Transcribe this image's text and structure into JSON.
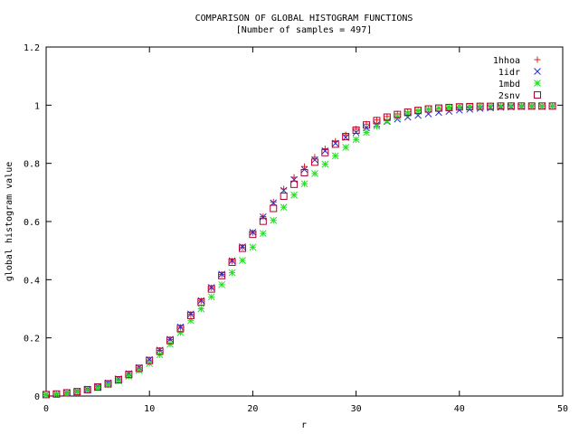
{
  "chart_data": {
    "type": "scatter",
    "title": "COMPARISON OF GLOBAL HISTOGRAM FUNCTIONS",
    "subtitle": "[Number of samples = 497]",
    "xlabel": "r",
    "ylabel": "global histogram value",
    "xlim": [
      0,
      50
    ],
    "ylim": [
      0,
      1.2
    ],
    "x_ticks": [
      "0",
      "10",
      "20",
      "30",
      "40",
      "50"
    ],
    "y_ticks": [
      "0",
      "0.2",
      "0.4",
      "0.6",
      "0.8",
      "1",
      "1.2"
    ],
    "grid": false,
    "legend_position": "top-right",
    "x": [
      0,
      1,
      2,
      3,
      4,
      5,
      6,
      7,
      8,
      9,
      10,
      11,
      12,
      13,
      14,
      15,
      16,
      17,
      18,
      19,
      20,
      21,
      22,
      23,
      24,
      25,
      26,
      27,
      28,
      29,
      30,
      31,
      32,
      33,
      34,
      35,
      36,
      37,
      38,
      39,
      40,
      41,
      42,
      43,
      44,
      45,
      46,
      47,
      48,
      49
    ],
    "series": [
      {
        "name": "1hhoa",
        "marker": "plus",
        "color": "#e0201e",
        "values": [
          0.005,
          0.007,
          0.011,
          0.016,
          0.023,
          0.032,
          0.044,
          0.058,
          0.076,
          0.097,
          0.124,
          0.157,
          0.194,
          0.236,
          0.281,
          0.327,
          0.372,
          0.418,
          0.464,
          0.512,
          0.562,
          0.617,
          0.667,
          0.712,
          0.752,
          0.789,
          0.821,
          0.85,
          0.876,
          0.898,
          0.918,
          0.935,
          0.949,
          0.961,
          0.97,
          0.977,
          0.982,
          0.986,
          0.989,
          0.991,
          0.993,
          0.994,
          0.995,
          0.996,
          0.996,
          0.997,
          0.997,
          0.997,
          0.997,
          0.997
        ]
      },
      {
        "name": "1idr",
        "marker": "cross",
        "color": "#2a2ad8",
        "values": [
          0.005,
          0.007,
          0.011,
          0.016,
          0.023,
          0.033,
          0.045,
          0.059,
          0.077,
          0.098,
          0.125,
          0.158,
          0.195,
          0.237,
          0.282,
          0.328,
          0.373,
          0.419,
          0.465,
          0.513,
          0.563,
          0.616,
          0.664,
          0.707,
          0.744,
          0.779,
          0.812,
          0.843,
          0.869,
          0.889,
          0.906,
          0.922,
          0.934,
          0.944,
          0.952,
          0.959,
          0.965,
          0.97,
          0.975,
          0.979,
          0.983,
          0.986,
          0.989,
          0.991,
          0.993,
          0.994,
          0.995,
          0.996,
          0.996,
          0.997
        ]
      },
      {
        "name": "1mbd",
        "marker": "star",
        "color": "#22e022",
        "values": [
          0.004,
          0.006,
          0.009,
          0.014,
          0.02,
          0.028,
          0.039,
          0.052,
          0.068,
          0.088,
          0.112,
          0.142,
          0.178,
          0.218,
          0.259,
          0.3,
          0.341,
          0.383,
          0.424,
          0.466,
          0.512,
          0.559,
          0.604,
          0.649,
          0.691,
          0.73,
          0.765,
          0.797,
          0.826,
          0.855,
          0.882,
          0.906,
          0.928,
          0.946,
          0.96,
          0.972,
          0.98,
          0.986,
          0.99,
          0.993,
          0.995,
          0.996,
          0.997,
          0.997,
          0.997,
          0.997,
          0.997,
          0.997,
          0.997,
          0.997
        ]
      },
      {
        "name": "2snv",
        "marker": "square",
        "color": "#b00030",
        "values": [
          0.005,
          0.007,
          0.011,
          0.015,
          0.022,
          0.031,
          0.042,
          0.056,
          0.074,
          0.095,
          0.122,
          0.154,
          0.191,
          0.232,
          0.277,
          0.323,
          0.368,
          0.414,
          0.46,
          0.508,
          0.556,
          0.601,
          0.645,
          0.687,
          0.728,
          0.768,
          0.804,
          0.837,
          0.866,
          0.892,
          0.914,
          0.932,
          0.947,
          0.959,
          0.968,
          0.976,
          0.982,
          0.987,
          0.99,
          0.992,
          0.994,
          0.995,
          0.996,
          0.996,
          0.997,
          0.997,
          0.997,
          0.997,
          0.997,
          0.997
        ]
      }
    ]
  }
}
